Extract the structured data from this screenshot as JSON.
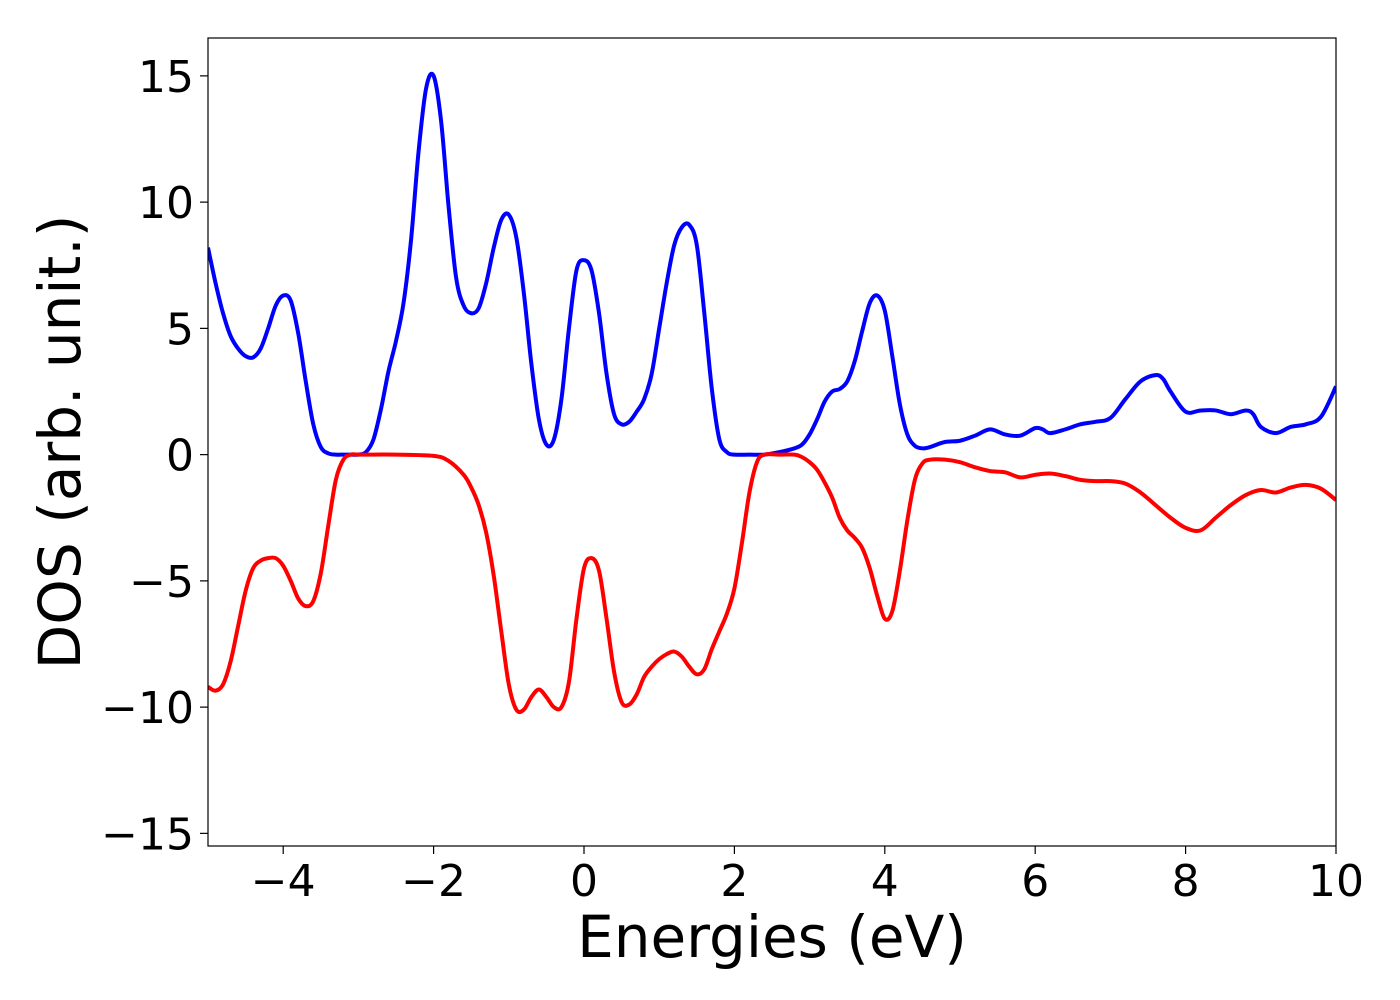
{
  "chart_data": {
    "type": "line",
    "title": "",
    "xlabel": "Energies (eV)",
    "ylabel": "DOS (arb. unit.)",
    "xlim": [
      -5,
      10
    ],
    "ylim": [
      -15.5,
      16.5
    ],
    "grid": false,
    "legend": "none",
    "x_ticks": [
      -4,
      -2,
      0,
      2,
      4,
      6,
      8,
      10
    ],
    "x_tick_labels": [
      "−4",
      "−2",
      "0",
      "2",
      "4",
      "6",
      "8",
      "10"
    ],
    "y_ticks": [
      -15,
      -10,
      -5,
      0,
      5,
      10,
      15
    ],
    "y_tick_labels": [
      "−15",
      "−10",
      "−5",
      "0",
      "5",
      "10",
      "15"
    ],
    "series": [
      {
        "color": "#0000ff",
        "x": [
          -5.0,
          -4.9,
          -4.8,
          -4.7,
          -4.6,
          -4.5,
          -4.4,
          -4.3,
          -4.2,
          -4.1,
          -4.0,
          -3.9,
          -3.8,
          -3.7,
          -3.6,
          -3.5,
          -3.4,
          -3.3,
          -3.2,
          -3.1,
          -3.0,
          -2.9,
          -2.8,
          -2.7,
          -2.6,
          -2.5,
          -2.4,
          -2.3,
          -2.2,
          -2.1,
          -2.0,
          -1.9,
          -1.8,
          -1.7,
          -1.6,
          -1.5,
          -1.4,
          -1.3,
          -1.2,
          -1.1,
          -1.0,
          -0.9,
          -0.8,
          -0.7,
          -0.6,
          -0.5,
          -0.4,
          -0.3,
          -0.2,
          -0.1,
          0.0,
          0.1,
          0.2,
          0.3,
          0.4,
          0.5,
          0.6,
          0.7,
          0.8,
          0.9,
          1.0,
          1.1,
          1.2,
          1.3,
          1.4,
          1.5,
          1.6,
          1.7,
          1.8,
          1.9,
          2.0,
          2.2,
          2.4,
          2.6,
          2.8,
          2.9,
          3.0,
          3.1,
          3.2,
          3.3,
          3.4,
          3.5,
          3.6,
          3.7,
          3.8,
          3.9,
          4.0,
          4.1,
          4.2,
          4.3,
          4.4,
          4.5,
          4.6,
          4.8,
          5.0,
          5.2,
          5.4,
          5.6,
          5.8,
          6.0,
          6.1,
          6.2,
          6.4,
          6.6,
          6.8,
          7.0,
          7.2,
          7.4,
          7.6,
          7.7,
          7.8,
          8.0,
          8.2,
          8.4,
          8.6,
          8.8,
          8.9,
          9.0,
          9.2,
          9.4,
          9.6,
          9.8,
          10.0
        ],
        "y": [
          8.2,
          6.8,
          5.6,
          4.7,
          4.2,
          3.9,
          3.85,
          4.2,
          5.0,
          5.9,
          6.3,
          6.1,
          4.8,
          2.9,
          1.2,
          0.3,
          0.05,
          0.0,
          0.0,
          0.0,
          0.0,
          0.1,
          0.6,
          1.8,
          3.3,
          4.5,
          6.0,
          8.5,
          12.0,
          14.5,
          15.0,
          13.2,
          9.8,
          7.0,
          5.9,
          5.6,
          5.8,
          6.8,
          8.2,
          9.3,
          9.5,
          8.6,
          6.4,
          3.6,
          1.4,
          0.4,
          0.6,
          2.2,
          5.0,
          7.3,
          7.7,
          7.3,
          5.6,
          3.2,
          1.6,
          1.2,
          1.3,
          1.7,
          2.2,
          3.2,
          5.0,
          6.8,
          8.3,
          9.0,
          9.1,
          8.3,
          5.6,
          2.6,
          0.6,
          0.1,
          0.0,
          0.0,
          0.0,
          0.1,
          0.25,
          0.4,
          0.8,
          1.4,
          2.1,
          2.5,
          2.6,
          2.9,
          3.7,
          4.9,
          6.0,
          6.3,
          5.7,
          3.9,
          2.0,
          0.8,
          0.35,
          0.25,
          0.3,
          0.5,
          0.55,
          0.75,
          1.0,
          0.8,
          0.75,
          1.05,
          1.0,
          0.85,
          1.0,
          1.2,
          1.3,
          1.45,
          2.2,
          2.9,
          3.15,
          3.0,
          2.5,
          1.7,
          1.75,
          1.75,
          1.6,
          1.75,
          1.6,
          1.1,
          0.85,
          1.1,
          1.2,
          1.5,
          2.7
        ]
      },
      {
        "color": "#ff0000",
        "x": [
          -5.0,
          -4.9,
          -4.8,
          -4.7,
          -4.6,
          -4.5,
          -4.4,
          -4.3,
          -4.2,
          -4.1,
          -4.0,
          -3.9,
          -3.8,
          -3.7,
          -3.6,
          -3.5,
          -3.4,
          -3.3,
          -3.2,
          -3.1,
          -3.0,
          -2.9,
          -2.5,
          -2.0,
          -1.8,
          -1.6,
          -1.5,
          -1.4,
          -1.3,
          -1.2,
          -1.1,
          -1.0,
          -0.9,
          -0.8,
          -0.7,
          -0.6,
          -0.5,
          -0.4,
          -0.3,
          -0.2,
          -0.1,
          0.0,
          0.1,
          0.2,
          0.3,
          0.4,
          0.5,
          0.6,
          0.7,
          0.8,
          0.9,
          1.0,
          1.1,
          1.2,
          1.3,
          1.4,
          1.5,
          1.6,
          1.7,
          1.8,
          1.9,
          2.0,
          2.1,
          2.2,
          2.3,
          2.4,
          2.6,
          2.8,
          2.9,
          3.0,
          3.1,
          3.2,
          3.3,
          3.4,
          3.5,
          3.6,
          3.7,
          3.8,
          3.9,
          4.0,
          4.1,
          4.2,
          4.3,
          4.4,
          4.5,
          4.6,
          4.8,
          5.0,
          5.2,
          5.4,
          5.6,
          5.8,
          6.0,
          6.2,
          6.4,
          6.6,
          6.8,
          7.0,
          7.2,
          7.4,
          7.6,
          7.8,
          8.0,
          8.2,
          8.4,
          8.6,
          8.8,
          9.0,
          9.2,
          9.4,
          9.6,
          9.8,
          10.0
        ],
        "y": [
          -9.2,
          -9.35,
          -9.1,
          -8.2,
          -6.8,
          -5.4,
          -4.5,
          -4.2,
          -4.1,
          -4.1,
          -4.4,
          -5.0,
          -5.7,
          -6.0,
          -5.8,
          -4.7,
          -2.8,
          -1.0,
          -0.2,
          0.0,
          0.0,
          0.0,
          0.0,
          -0.05,
          -0.25,
          -0.8,
          -1.3,
          -2.0,
          -3.1,
          -4.8,
          -7.0,
          -9.1,
          -10.1,
          -10.1,
          -9.6,
          -9.3,
          -9.6,
          -10.0,
          -10.0,
          -9.0,
          -6.5,
          -4.5,
          -4.1,
          -4.6,
          -6.5,
          -8.6,
          -9.8,
          -9.9,
          -9.5,
          -8.8,
          -8.4,
          -8.1,
          -7.9,
          -7.8,
          -8.0,
          -8.4,
          -8.7,
          -8.5,
          -7.7,
          -7.0,
          -6.3,
          -5.3,
          -3.5,
          -1.5,
          -0.3,
          0.0,
          0.0,
          0.0,
          -0.1,
          -0.3,
          -0.6,
          -1.1,
          -1.7,
          -2.5,
          -3.0,
          -3.3,
          -3.7,
          -4.5,
          -5.6,
          -6.5,
          -6.2,
          -4.6,
          -2.6,
          -1.0,
          -0.35,
          -0.2,
          -0.2,
          -0.3,
          -0.5,
          -0.65,
          -0.7,
          -0.9,
          -0.8,
          -0.75,
          -0.85,
          -1.0,
          -1.05,
          -1.05,
          -1.15,
          -1.5,
          -2.0,
          -2.5,
          -2.9,
          -3.0,
          -2.5,
          -2.0,
          -1.6,
          -1.4,
          -1.5,
          -1.3,
          -1.2,
          -1.35,
          -1.8
        ]
      }
    ]
  }
}
